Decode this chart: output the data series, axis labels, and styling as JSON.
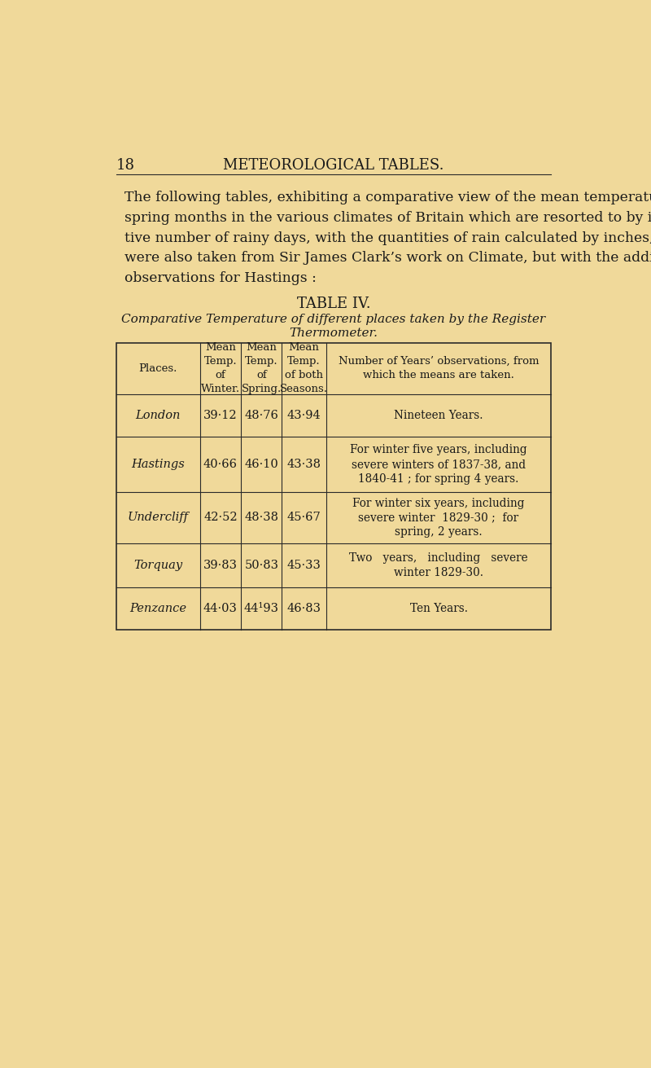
{
  "bg_color": "#f0d99a",
  "page_number": "18",
  "page_header": "METEOROLOGICAL TABLES.",
  "table_title": "TABLE IV.",
  "table_subtitle_line1": "Comparative Temperature of different places taken by the Register",
  "table_subtitle_line2": "Thermometer.",
  "rows": [
    [
      "London",
      "39·12",
      "48·76",
      "43·94",
      "Nineteen Years."
    ],
    [
      "Hastings",
      "40·66",
      "46·10",
      "43·38",
      "For winter five years, including\nsevere winters of 1837-38, and\n1840-41 ; for spring 4 years."
    ],
    [
      "Undercliff",
      "42·52",
      "48·38",
      "45·67",
      "For winter six years, including\nsevere winter  1829-30 ;  for\nspring, 2 years."
    ],
    [
      "Torquay",
      "39·83",
      "50·83",
      "45·33",
      "Two   years,   including   severe\nwinter 1829-30."
    ],
    [
      "Penzance",
      "44·03",
      "44¹93",
      "46·83",
      "Ten Years."
    ]
  ],
  "text_color": "#1a1a1a",
  "line_color": "#2a2a2a",
  "body_lines": [
    "The following tables, exhibiting a comparative view of the mean temperature of the winter and",
    "spring months in the various climates of Britain which are resorted to by invalids, and the compara-",
    "tive number of rainy days, with the quantities of rain calculated by inches, which falls at the same places,",
    "were also taken from Sir James Clark’s work on Climate, but with the addition of another year’s",
    "observations for Hastings :"
  ]
}
